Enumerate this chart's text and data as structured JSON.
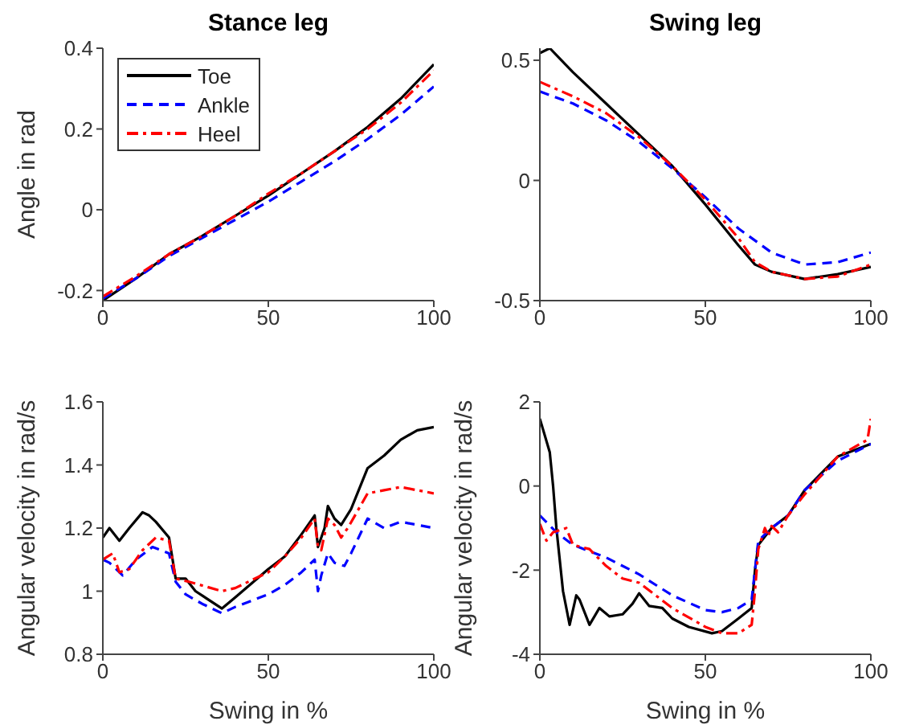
{
  "chart_data": [
    {
      "type": "line",
      "title": "Stance leg",
      "ylabel": "Angle in rad",
      "xlim": [
        0,
        100
      ],
      "xticks": [
        0,
        50,
        100
      ],
      "ylim": [
        -0.225,
        0.4
      ],
      "yticks": [
        -0.2,
        0,
        0.2,
        0.4
      ],
      "grid": false,
      "legend": "top left",
      "series": [
        {
          "name": "Toe",
          "color": "#000000",
          "line_style": "solid",
          "x": [
            0,
            10,
            20,
            30,
            40,
            50,
            60,
            70,
            80,
            90,
            100
          ],
          "values": [
            -0.225,
            -0.17,
            -0.11,
            -0.065,
            -0.015,
            0.035,
            0.09,
            0.145,
            0.205,
            0.275,
            0.36
          ]
        },
        {
          "name": "Ankle",
          "color": "#0000ff",
          "line_style": "dashed",
          "x": [
            0,
            10,
            20,
            30,
            40,
            50,
            60,
            70,
            80,
            90,
            100
          ],
          "values": [
            -0.22,
            -0.17,
            -0.115,
            -0.07,
            -0.025,
            0.02,
            0.07,
            0.12,
            0.175,
            0.235,
            0.305
          ]
        },
        {
          "name": "Heel",
          "color": "#ff0000",
          "line_style": "dotted",
          "x": [
            0,
            10,
            20,
            30,
            40,
            50,
            60,
            70,
            80,
            90,
            100
          ],
          "values": [
            -0.215,
            -0.165,
            -0.11,
            -0.065,
            -0.015,
            0.04,
            0.09,
            0.145,
            0.2,
            0.265,
            0.345
          ]
        }
      ]
    },
    {
      "type": "line",
      "title": "Swing leg",
      "xlim": [
        0,
        100
      ],
      "xticks": [
        0,
        50,
        100
      ],
      "ylim": [
        -0.5,
        0.55
      ],
      "yticks": [
        -0.5,
        0,
        0.5
      ],
      "grid": false,
      "legend": false,
      "series": [
        {
          "color": "#000000",
          "line_style": "solid",
          "x": [
            0,
            3,
            10,
            20,
            30,
            40,
            50,
            60,
            65,
            70,
            80,
            90,
            100
          ],
          "values": [
            0.53,
            0.55,
            0.45,
            0.32,
            0.19,
            0.06,
            -0.1,
            -0.27,
            -0.35,
            -0.38,
            -0.41,
            -0.39,
            -0.36
          ]
        },
        {
          "color": "#0000ff",
          "line_style": "dashed",
          "x": [
            0,
            10,
            20,
            30,
            40,
            50,
            60,
            70,
            80,
            90,
            100
          ],
          "values": [
            0.37,
            0.32,
            0.25,
            0.16,
            0.05,
            -0.07,
            -0.2,
            -0.3,
            -0.35,
            -0.34,
            -0.3
          ]
        },
        {
          "color": "#ff0000",
          "line_style": "dotted",
          "x": [
            0,
            10,
            20,
            30,
            40,
            50,
            60,
            65,
            70,
            80,
            90,
            100
          ],
          "values": [
            0.41,
            0.35,
            0.28,
            0.18,
            0.06,
            -0.08,
            -0.24,
            -0.34,
            -0.38,
            -0.41,
            -0.4,
            -0.35
          ]
        }
      ]
    },
    {
      "type": "line",
      "xlabel": "Swing in %",
      "ylabel": "Angular velocity in rad/s",
      "xlim": [
        0,
        100
      ],
      "xticks": [
        0,
        50,
        100
      ],
      "ylim": [
        0.8,
        1.6
      ],
      "yticks": [
        0.8,
        1,
        1.2,
        1.4,
        1.6
      ],
      "grid": false,
      "legend": false,
      "series": [
        {
          "color": "#000000",
          "line_style": "solid",
          "x": [
            0,
            2,
            5,
            8,
            12,
            14,
            16,
            20,
            22,
            25,
            28,
            36,
            40,
            50,
            55,
            60,
            64,
            65,
            67,
            68,
            70,
            72,
            75,
            80,
            85,
            90,
            95,
            100
          ],
          "values": [
            1.17,
            1.2,
            1.16,
            1.2,
            1.25,
            1.24,
            1.22,
            1.17,
            1.04,
            1.04,
            1.0,
            0.945,
            0.98,
            1.07,
            1.11,
            1.18,
            1.24,
            1.14,
            1.2,
            1.27,
            1.23,
            1.21,
            1.26,
            1.39,
            1.43,
            1.48,
            1.51,
            1.52
          ]
        },
        {
          "color": "#0000ff",
          "line_style": "dashed",
          "x": [
            0,
            2,
            6,
            10,
            15,
            20,
            22,
            25,
            30,
            36,
            40,
            50,
            55,
            60,
            64,
            65,
            66,
            68,
            70,
            73,
            75,
            80,
            85,
            90,
            95,
            100
          ],
          "values": [
            1.1,
            1.09,
            1.05,
            1.1,
            1.14,
            1.12,
            1.03,
            0.99,
            0.96,
            0.93,
            0.95,
            0.99,
            1.02,
            1.06,
            1.1,
            1.0,
            1.05,
            1.12,
            1.09,
            1.08,
            1.12,
            1.23,
            1.2,
            1.22,
            1.21,
            1.2
          ]
        },
        {
          "color": "#ff0000",
          "line_style": "dotted",
          "x": [
            0,
            3,
            5,
            8,
            12,
            16,
            20,
            22,
            26,
            36,
            40,
            50,
            55,
            60,
            64,
            65,
            66,
            68,
            70,
            72,
            74,
            80,
            85,
            90,
            95,
            100
          ],
          "values": [
            1.1,
            1.12,
            1.06,
            1.07,
            1.13,
            1.17,
            1.16,
            1.04,
            1.03,
            1.0,
            1.01,
            1.06,
            1.11,
            1.17,
            1.23,
            1.14,
            1.13,
            1.23,
            1.21,
            1.17,
            1.2,
            1.31,
            1.32,
            1.33,
            1.32,
            1.31
          ]
        }
      ]
    },
    {
      "type": "line",
      "xlabel": "Swing in %",
      "ylabel": "Angular velocity in rad/s",
      "xlim": [
        0,
        100
      ],
      "xticks": [
        0,
        50,
        100
      ],
      "ylim": [
        -4,
        2
      ],
      "yticks": [
        -4,
        -2,
        0,
        2
      ],
      "grid": false,
      "legend": false,
      "series": [
        {
          "color": "#000000",
          "line_style": "solid",
          "x": [
            0,
            3,
            4,
            5,
            7,
            9,
            11,
            12,
            15,
            18,
            21,
            25,
            28,
            30,
            33,
            37,
            40,
            45,
            52,
            55,
            60,
            64,
            65,
            66,
            70,
            75,
            80,
            90,
            100
          ],
          "values": [
            1.6,
            0.8,
            0,
            -1,
            -2.5,
            -3.3,
            -2.6,
            -2.7,
            -3.3,
            -2.9,
            -3.1,
            -3.05,
            -2.8,
            -2.55,
            -2.85,
            -2.9,
            -3.15,
            -3.35,
            -3.5,
            -3.45,
            -3.15,
            -2.9,
            -2.0,
            -1.4,
            -1.0,
            -0.7,
            -0.1,
            0.7,
            1.0
          ]
        },
        {
          "color": "#0000ff",
          "line_style": "dashed",
          "x": [
            0,
            5,
            10,
            20,
            30,
            40,
            50,
            55,
            60,
            64,
            65,
            66,
            70,
            75,
            80,
            90,
            100
          ],
          "values": [
            -0.7,
            -1.1,
            -1.4,
            -1.7,
            -2.1,
            -2.6,
            -2.95,
            -3.0,
            -2.9,
            -2.7,
            -2.0,
            -1.3,
            -1.0,
            -0.7,
            -0.1,
            0.6,
            1.0
          ]
        },
        {
          "color": "#ff0000",
          "line_style": "dotted",
          "x": [
            0,
            2,
            4,
            6,
            8,
            10,
            15,
            20,
            25,
            30,
            40,
            50,
            55,
            60,
            64,
            65,
            66,
            68,
            69,
            70,
            72,
            75,
            80,
            90,
            99,
            100
          ],
          "values": [
            -0.9,
            -1.3,
            -1.1,
            -1.05,
            -1.0,
            -1.4,
            -1.5,
            -1.9,
            -2.2,
            -2.3,
            -2.9,
            -3.35,
            -3.5,
            -3.5,
            -3.3,
            -2.5,
            -1.5,
            -1.0,
            -1.2,
            -0.95,
            -1.1,
            -0.7,
            -0.2,
            0.7,
            1.1,
            1.6
          ]
        }
      ]
    }
  ]
}
